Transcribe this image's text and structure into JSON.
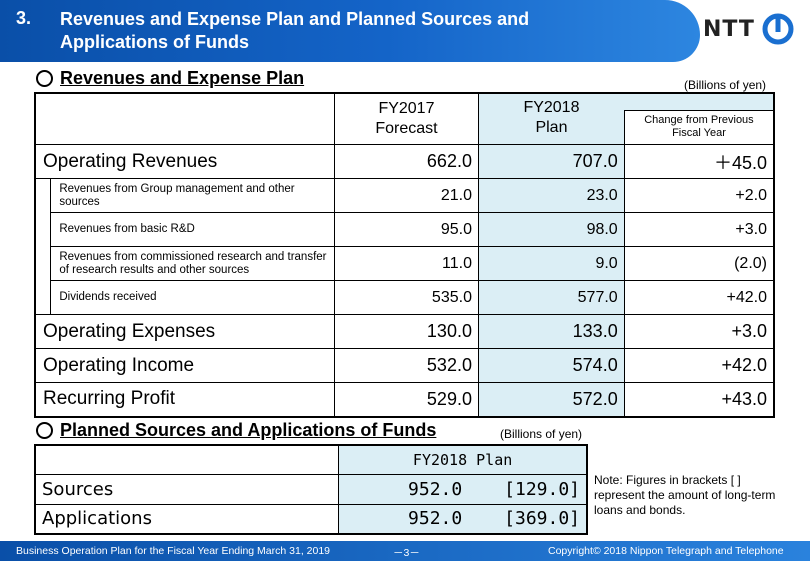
{
  "header": {
    "number": "3.",
    "title_line1": "Revenues and Expense Plan and Planned Sources and",
    "title_line2": "Applications of Funds",
    "logo_text": "NTT"
  },
  "section1": {
    "title": "Revenues and Expense Plan",
    "unit": "(Billions of yen)",
    "columns": {
      "fy2017_line1": "FY2017",
      "fy2017_line2": "Forecast",
      "fy2018_line1": "FY2018",
      "fy2018_line2": "Plan",
      "change_line1": "Change from Previous",
      "change_line2": "Fiscal Year"
    },
    "rows": [
      {
        "label": "Operating Revenues",
        "fy2017": "662.0",
        "fy2018": "707.0",
        "change": "＋45.0"
      },
      {
        "label": "Revenues from Group management and other sources",
        "fy2017": "21.0",
        "fy2018": "23.0",
        "change": "+2.0"
      },
      {
        "label": "Revenues from basic R&D",
        "fy2017": "95.0",
        "fy2018": "98.0",
        "change": "+3.0"
      },
      {
        "label": "Revenues from commissioned research and transfer of research results and other sources",
        "fy2017": "11.0",
        "fy2018": "9.0",
        "change": "(2.0)"
      },
      {
        "label": "Dividends received",
        "fy2017": "535.0",
        "fy2018": "577.0",
        "change": "+42.0"
      },
      {
        "label": "Operating Expenses",
        "fy2017": "130.0",
        "fy2018": "133.0",
        "change": "+3.0"
      },
      {
        "label": "Operating Income",
        "fy2017": "532.0",
        "fy2018": "574.0",
        "change": "+42.0"
      },
      {
        "label": "Recurring Profit",
        "fy2017": "529.0",
        "fy2018": "572.0",
        "change": "+43.0"
      }
    ]
  },
  "section2": {
    "title": "Planned Sources and Applications of Funds",
    "unit": "(Billions of yen)",
    "column": "FY2018 Plan",
    "rows": [
      {
        "label": "Sources",
        "value": "952.0",
        "bracket": "[129.0]"
      },
      {
        "label": "Applications",
        "value": "952.0",
        "bracket": "[369.0]"
      }
    ],
    "note": "Note: Figures in brackets [ ] represent the amount of long-term loans and bonds."
  },
  "footer": {
    "left": "Business Operation Plan for the Fiscal Year Ending March 31, 2019",
    "page": "－3－",
    "right": "Copyright© 2018 Nippon Telegraph and Telephone"
  }
}
